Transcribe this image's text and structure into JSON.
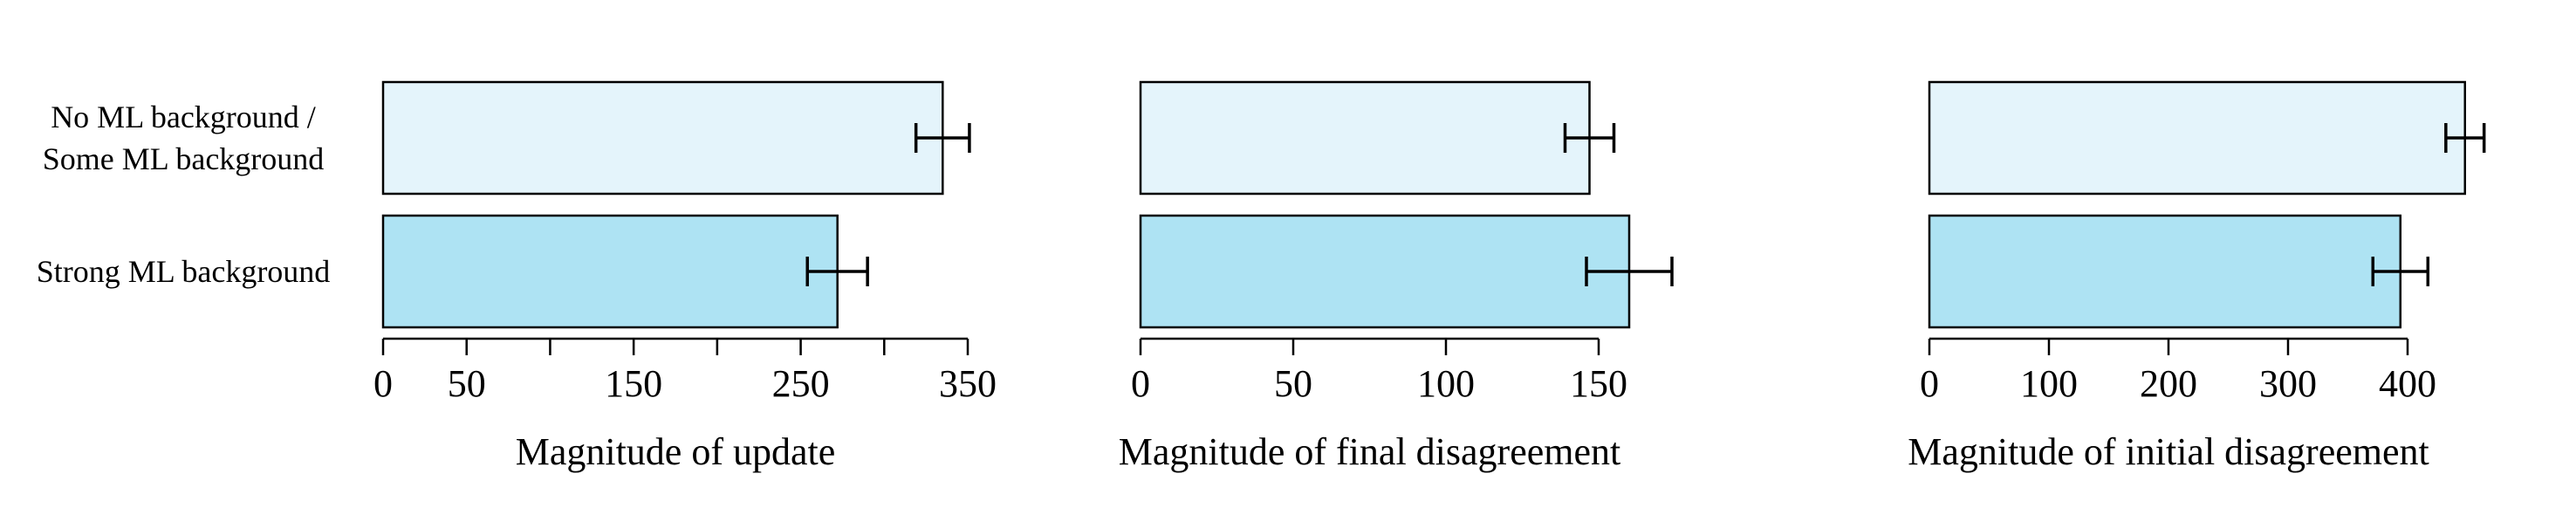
{
  "chart_data": [
    {
      "type": "bar",
      "orientation": "horizontal",
      "categories": [
        "No ML background /\nSome ML background",
        "Strong ML background"
      ],
      "values": [
        335,
        272
      ],
      "errors": [
        16,
        18
      ],
      "colors": [
        "#e4f4fb",
        "#aee3f3"
      ],
      "xlabel": "Magnitude of update",
      "xlim": [
        0,
        350
      ],
      "xticks": [
        0,
        50,
        150,
        250,
        350
      ],
      "minor_xticks": [
        100,
        200,
        300
      ]
    },
    {
      "type": "bar",
      "orientation": "horizontal",
      "categories": [
        null,
        null
      ],
      "values": [
        147,
        160
      ],
      "errors": [
        8,
        14
      ],
      "colors": [
        "#e4f4fb",
        "#aee3f3"
      ],
      "xlabel": "Magnitude of final disagreement",
      "xlim": [
        0,
        150
      ],
      "xticks": [
        0,
        50,
        100,
        150
      ],
      "minor_xticks": []
    },
    {
      "type": "bar",
      "orientation": "horizontal",
      "categories": [
        null,
        null
      ],
      "values": [
        448,
        394
      ],
      "errors": [
        16,
        23
      ],
      "colors": [
        "#e4f4fb",
        "#aee3f3"
      ],
      "xlabel": "Magnitude of initial disagreement",
      "xlim": [
        0,
        400
      ],
      "xticks": [
        0,
        100,
        200,
        300,
        400
      ],
      "minor_xticks": []
    }
  ]
}
